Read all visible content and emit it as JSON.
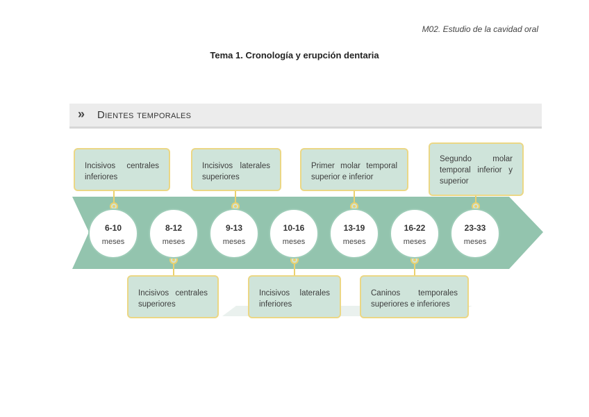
{
  "header": {
    "running_title": "M02. Estudio de la cavidad oral",
    "topic_title": "Tema 1. Cronología y erupción dentaria"
  },
  "section": {
    "chevron_icon": "double-chevron-right-icon",
    "title": "Dientes temporales"
  },
  "colors": {
    "band": "#93c4ae",
    "box_fill": "#cfe4da",
    "box_border": "#ebd785",
    "connector": "#ebd16d"
  },
  "timeline": {
    "stages": [
      {
        "range": "6-10",
        "unit": "meses"
      },
      {
        "range": "8-12",
        "unit": "meses"
      },
      {
        "range": "9-13",
        "unit": "meses"
      },
      {
        "range": "10-16",
        "unit": "meses"
      },
      {
        "range": "13-19",
        "unit": "meses"
      },
      {
        "range": "16-22",
        "unit": "meses"
      },
      {
        "range": "23-33",
        "unit": "meses"
      }
    ],
    "top_labels": [
      "Incisivos centrales inferiores",
      "Incisivos laterales superiores",
      "Primer molar temporal superior e inferior",
      "Segundo molar temporal inferior y superior"
    ],
    "bottom_labels": [
      "Incisivos centrales superiores",
      "Incisivos laterales inferiores",
      "Caninos temporales superiores e inferiores"
    ]
  }
}
